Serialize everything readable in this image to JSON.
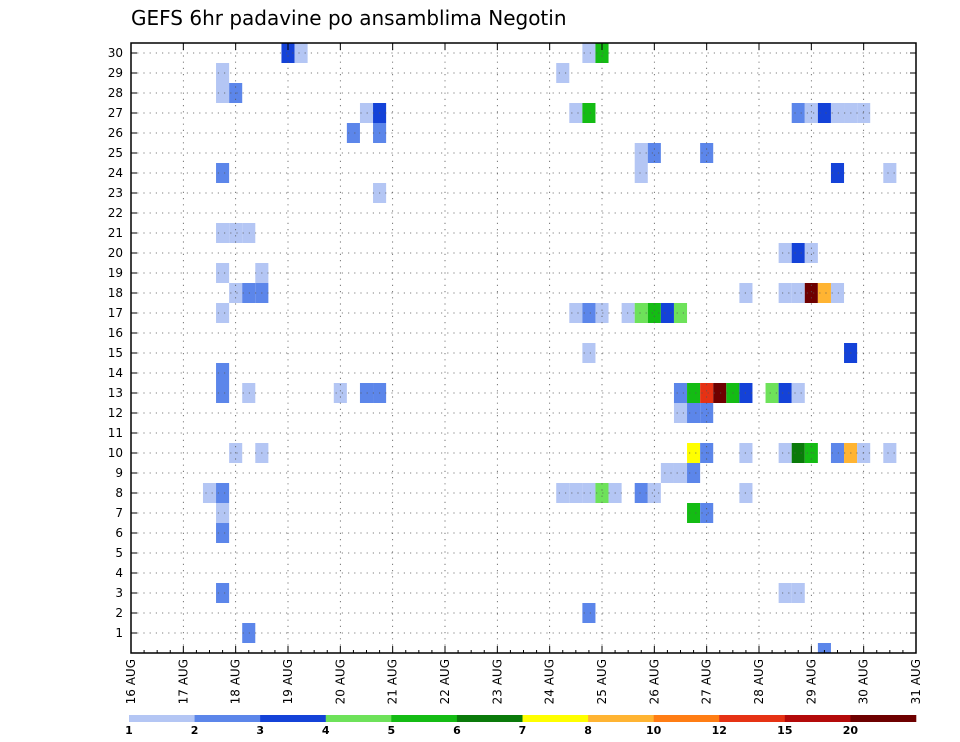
{
  "chart_data": {
    "type": "heatmap",
    "title": "GEFS 6hr padavine po ansamblima Negotin",
    "xlabel": "",
    "ylabel": "",
    "x_range": [
      16.0,
      31.0
    ],
    "y_range": [
      0,
      30
    ],
    "x_ticks": [
      {
        "value": 16,
        "label": "16 AUG"
      },
      {
        "value": 17,
        "label": "17 AUG"
      },
      {
        "value": 18,
        "label": "18 AUG"
      },
      {
        "value": 19,
        "label": "19 AUG"
      },
      {
        "value": 20,
        "label": "20 AUG"
      },
      {
        "value": 21,
        "label": "21 AUG"
      },
      {
        "value": 22,
        "label": "22 AUG"
      },
      {
        "value": 23,
        "label": "23 AUG"
      },
      {
        "value": 24,
        "label": "24 AUG"
      },
      {
        "value": 25,
        "label": "25 AUG"
      },
      {
        "value": 26,
        "label": "26 AUG"
      },
      {
        "value": 27,
        "label": "27 AUG"
      },
      {
        "value": 28,
        "label": "28 AUG"
      },
      {
        "value": 29,
        "label": "29 AUG"
      },
      {
        "value": 30,
        "label": "30 AUG"
      },
      {
        "value": 31,
        "label": "31 AUG"
      }
    ],
    "y_ticks": [
      "1",
      "2",
      "3",
      "4",
      "5",
      "6",
      "7",
      "8",
      "9",
      "10",
      "11",
      "12",
      "13",
      "14",
      "15",
      "16",
      "17",
      "18",
      "19",
      "20",
      "21",
      "22",
      "23",
      "24",
      "25",
      "26",
      "27",
      "28",
      "29",
      "30"
    ],
    "grid": true,
    "colorbar": {
      "colors": [
        "#b4c6f4",
        "#5c86ea",
        "#1442d8",
        "#6ee25a",
        "#14bc14",
        "#0a7a0a",
        "#ffff00",
        "#ffb432",
        "#ff7d14",
        "#e63214",
        "#b40a0a",
        "#6e0000"
      ],
      "tick_labels": [
        "1",
        "2",
        "3",
        "4",
        "5",
        "6",
        "7",
        "8",
        "10",
        "12",
        "15",
        "20"
      ]
    },
    "cells": [
      {
        "x": 19.0,
        "y": 30,
        "c": 2
      },
      {
        "x": 19.25,
        "y": 30,
        "c": 0
      },
      {
        "x": 24.75,
        "y": 30,
        "c": 0
      },
      {
        "x": 25.0,
        "y": 30,
        "c": 4
      },
      {
        "x": 17.75,
        "y": 29,
        "c": 0
      },
      {
        "x": 24.25,
        "y": 29,
        "c": 0
      },
      {
        "x": 17.75,
        "y": 28,
        "c": 0
      },
      {
        "x": 18.0,
        "y": 28,
        "c": 1
      },
      {
        "x": 20.5,
        "y": 27,
        "c": 0
      },
      {
        "x": 20.75,
        "y": 27,
        "c": 2
      },
      {
        "x": 24.5,
        "y": 27,
        "c": 0
      },
      {
        "x": 24.75,
        "y": 27,
        "c": 4
      },
      {
        "x": 28.75,
        "y": 27,
        "c": 1
      },
      {
        "x": 29.0,
        "y": 27,
        "c": 0
      },
      {
        "x": 29.25,
        "y": 27,
        "c": 2
      },
      {
        "x": 29.5,
        "y": 27,
        "c": 0
      },
      {
        "x": 29.75,
        "y": 27,
        "c": 0
      },
      {
        "x": 30.0,
        "y": 27,
        "c": 0
      },
      {
        "x": 20.25,
        "y": 26,
        "c": 1
      },
      {
        "x": 20.75,
        "y": 26,
        "c": 1
      },
      {
        "x": 25.75,
        "y": 25,
        "c": 0
      },
      {
        "x": 26.0,
        "y": 25,
        "c": 1
      },
      {
        "x": 27.0,
        "y": 25,
        "c": 1
      },
      {
        "x": 17.75,
        "y": 24,
        "c": 1
      },
      {
        "x": 25.75,
        "y": 24,
        "c": 0
      },
      {
        "x": 29.5,
        "y": 24,
        "c": 2
      },
      {
        "x": 30.5,
        "y": 24,
        "c": 0
      },
      {
        "x": 20.75,
        "y": 23,
        "c": 0
      },
      {
        "x": 17.75,
        "y": 21,
        "c": 0
      },
      {
        "x": 18.0,
        "y": 21,
        "c": 0
      },
      {
        "x": 18.25,
        "y": 21,
        "c": 0
      },
      {
        "x": 28.5,
        "y": 20,
        "c": 0
      },
      {
        "x": 28.75,
        "y": 20,
        "c": 2
      },
      {
        "x": 29.0,
        "y": 20,
        "c": 0
      },
      {
        "x": 17.75,
        "y": 19,
        "c": 0
      },
      {
        "x": 18.5,
        "y": 19,
        "c": 0
      },
      {
        "x": 18.0,
        "y": 18,
        "c": 0
      },
      {
        "x": 18.25,
        "y": 18,
        "c": 1
      },
      {
        "x": 18.5,
        "y": 18,
        "c": 1
      },
      {
        "x": 27.75,
        "y": 18,
        "c": 0
      },
      {
        "x": 28.5,
        "y": 18,
        "c": 0
      },
      {
        "x": 28.75,
        "y": 18,
        "c": 0
      },
      {
        "x": 29.0,
        "y": 18,
        "c": 11
      },
      {
        "x": 29.25,
        "y": 18,
        "c": 7
      },
      {
        "x": 29.5,
        "y": 18,
        "c": 0
      },
      {
        "x": 17.75,
        "y": 17,
        "c": 0
      },
      {
        "x": 24.5,
        "y": 17,
        "c": 0
      },
      {
        "x": 24.75,
        "y": 17,
        "c": 1
      },
      {
        "x": 25.0,
        "y": 17,
        "c": 0
      },
      {
        "x": 25.5,
        "y": 17,
        "c": 0
      },
      {
        "x": 25.75,
        "y": 17,
        "c": 3
      },
      {
        "x": 26.0,
        "y": 17,
        "c": 4
      },
      {
        "x": 26.25,
        "y": 17,
        "c": 2
      },
      {
        "x": 26.5,
        "y": 17,
        "c": 3
      },
      {
        "x": 24.75,
        "y": 15,
        "c": 0
      },
      {
        "x": 29.75,
        "y": 15,
        "c": 2
      },
      {
        "x": 17.75,
        "y": 14,
        "c": 1
      },
      {
        "x": 17.75,
        "y": 13,
        "c": 1
      },
      {
        "x": 18.25,
        "y": 13,
        "c": 0
      },
      {
        "x": 20.0,
        "y": 13,
        "c": 0
      },
      {
        "x": 20.5,
        "y": 13,
        "c": 1
      },
      {
        "x": 20.75,
        "y": 13,
        "c": 1
      },
      {
        "x": 26.5,
        "y": 13,
        "c": 1
      },
      {
        "x": 26.75,
        "y": 13,
        "c": 4
      },
      {
        "x": 27.0,
        "y": 13,
        "c": 9
      },
      {
        "x": 27.25,
        "y": 13,
        "c": 11
      },
      {
        "x": 27.5,
        "y": 13,
        "c": 4
      },
      {
        "x": 27.75,
        "y": 13,
        "c": 2
      },
      {
        "x": 28.25,
        "y": 13,
        "c": 3
      },
      {
        "x": 28.5,
        "y": 13,
        "c": 2
      },
      {
        "x": 28.75,
        "y": 13,
        "c": 0
      },
      {
        "x": 26.5,
        "y": 12,
        "c": 0
      },
      {
        "x": 26.75,
        "y": 12,
        "c": 1
      },
      {
        "x": 27.0,
        "y": 12,
        "c": 1
      },
      {
        "x": 18.0,
        "y": 10,
        "c": 0
      },
      {
        "x": 18.5,
        "y": 10,
        "c": 0
      },
      {
        "x": 26.75,
        "y": 10,
        "c": 6
      },
      {
        "x": 27.0,
        "y": 10,
        "c": 1
      },
      {
        "x": 27.75,
        "y": 10,
        "c": 0
      },
      {
        "x": 28.5,
        "y": 10,
        "c": 0
      },
      {
        "x": 28.75,
        "y": 10,
        "c": 5
      },
      {
        "x": 29.0,
        "y": 10,
        "c": 4
      },
      {
        "x": 29.5,
        "y": 10,
        "c": 1
      },
      {
        "x": 29.75,
        "y": 10,
        "c": 7
      },
      {
        "x": 30.0,
        "y": 10,
        "c": 0
      },
      {
        "x": 30.5,
        "y": 10,
        "c": 0
      },
      {
        "x": 26.25,
        "y": 9,
        "c": 0
      },
      {
        "x": 26.5,
        "y": 9,
        "c": 0
      },
      {
        "x": 26.75,
        "y": 9,
        "c": 1
      },
      {
        "x": 17.5,
        "y": 8,
        "c": 0
      },
      {
        "x": 17.75,
        "y": 8,
        "c": 1
      },
      {
        "x": 24.25,
        "y": 8,
        "c": 0
      },
      {
        "x": 24.5,
        "y": 8,
        "c": 0
      },
      {
        "x": 24.75,
        "y": 8,
        "c": 0
      },
      {
        "x": 25.0,
        "y": 8,
        "c": 3
      },
      {
        "x": 25.25,
        "y": 8,
        "c": 0
      },
      {
        "x": 25.75,
        "y": 8,
        "c": 1
      },
      {
        "x": 26.0,
        "y": 8,
        "c": 0
      },
      {
        "x": 27.75,
        "y": 8,
        "c": 0
      },
      {
        "x": 17.75,
        "y": 7,
        "c": 0
      },
      {
        "x": 26.75,
        "y": 7,
        "c": 4
      },
      {
        "x": 27.0,
        "y": 7,
        "c": 1
      },
      {
        "x": 17.75,
        "y": 6,
        "c": 1
      },
      {
        "x": 17.75,
        "y": 3,
        "c": 1
      },
      {
        "x": 28.5,
        "y": 3,
        "c": 0
      },
      {
        "x": 28.75,
        "y": 3,
        "c": 0
      },
      {
        "x": 24.75,
        "y": 2,
        "c": 1
      },
      {
        "x": 18.25,
        "y": 1,
        "c": 1
      },
      {
        "x": 29.25,
        "y": 0,
        "c": 1
      }
    ]
  }
}
